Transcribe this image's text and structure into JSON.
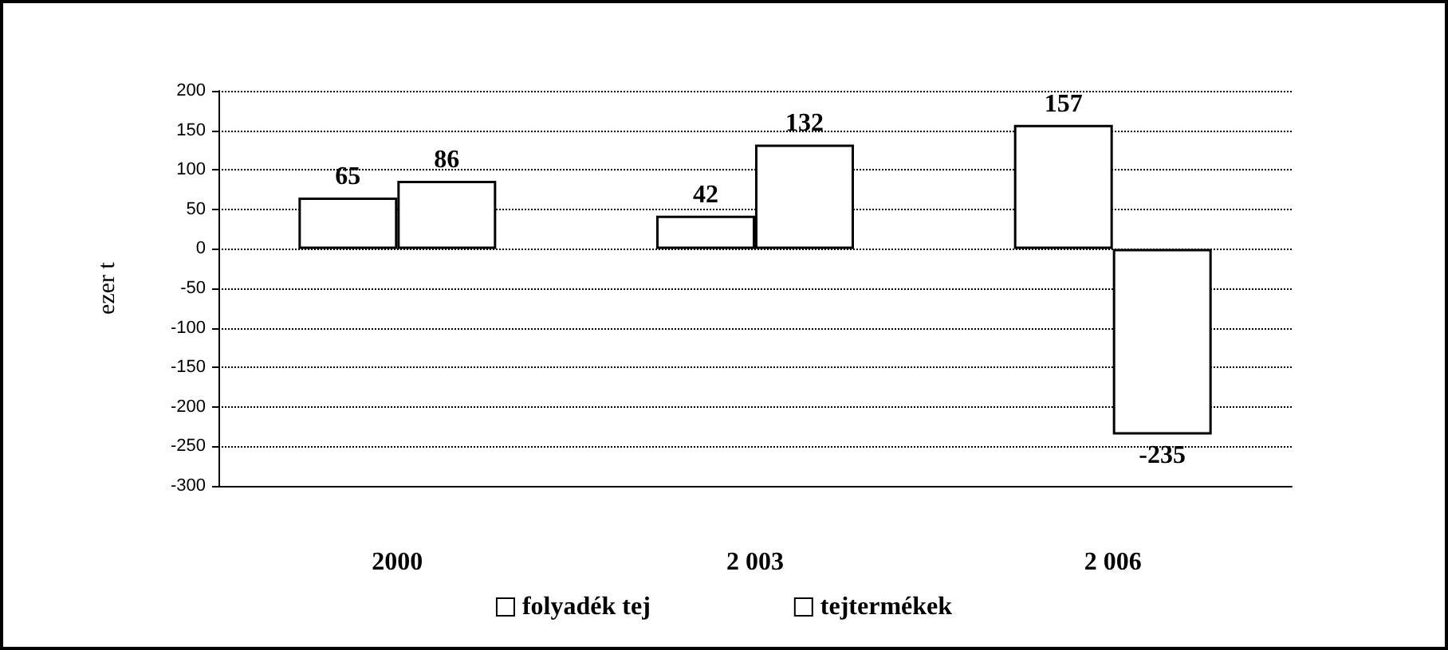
{
  "chart_data": {
    "type": "bar",
    "ylabel": "ezer t",
    "categories": [
      "2000",
      "2 003",
      "2 006"
    ],
    "series": [
      {
        "name": "folyadék tej",
        "color": "#ffffff",
        "values": [
          65,
          42,
          157
        ]
      },
      {
        "name": "tejtermékek",
        "color": "#ffffff",
        "values": [
          86,
          132,
          -235
        ]
      }
    ],
    "ylim": [
      -300,
      200
    ],
    "yticks": [
      -300,
      -250,
      -200,
      -150,
      -100,
      -50,
      0,
      50,
      100,
      150,
      200
    ],
    "grid": "y",
    "legend": "bottom",
    "data_labels": true
  }
}
